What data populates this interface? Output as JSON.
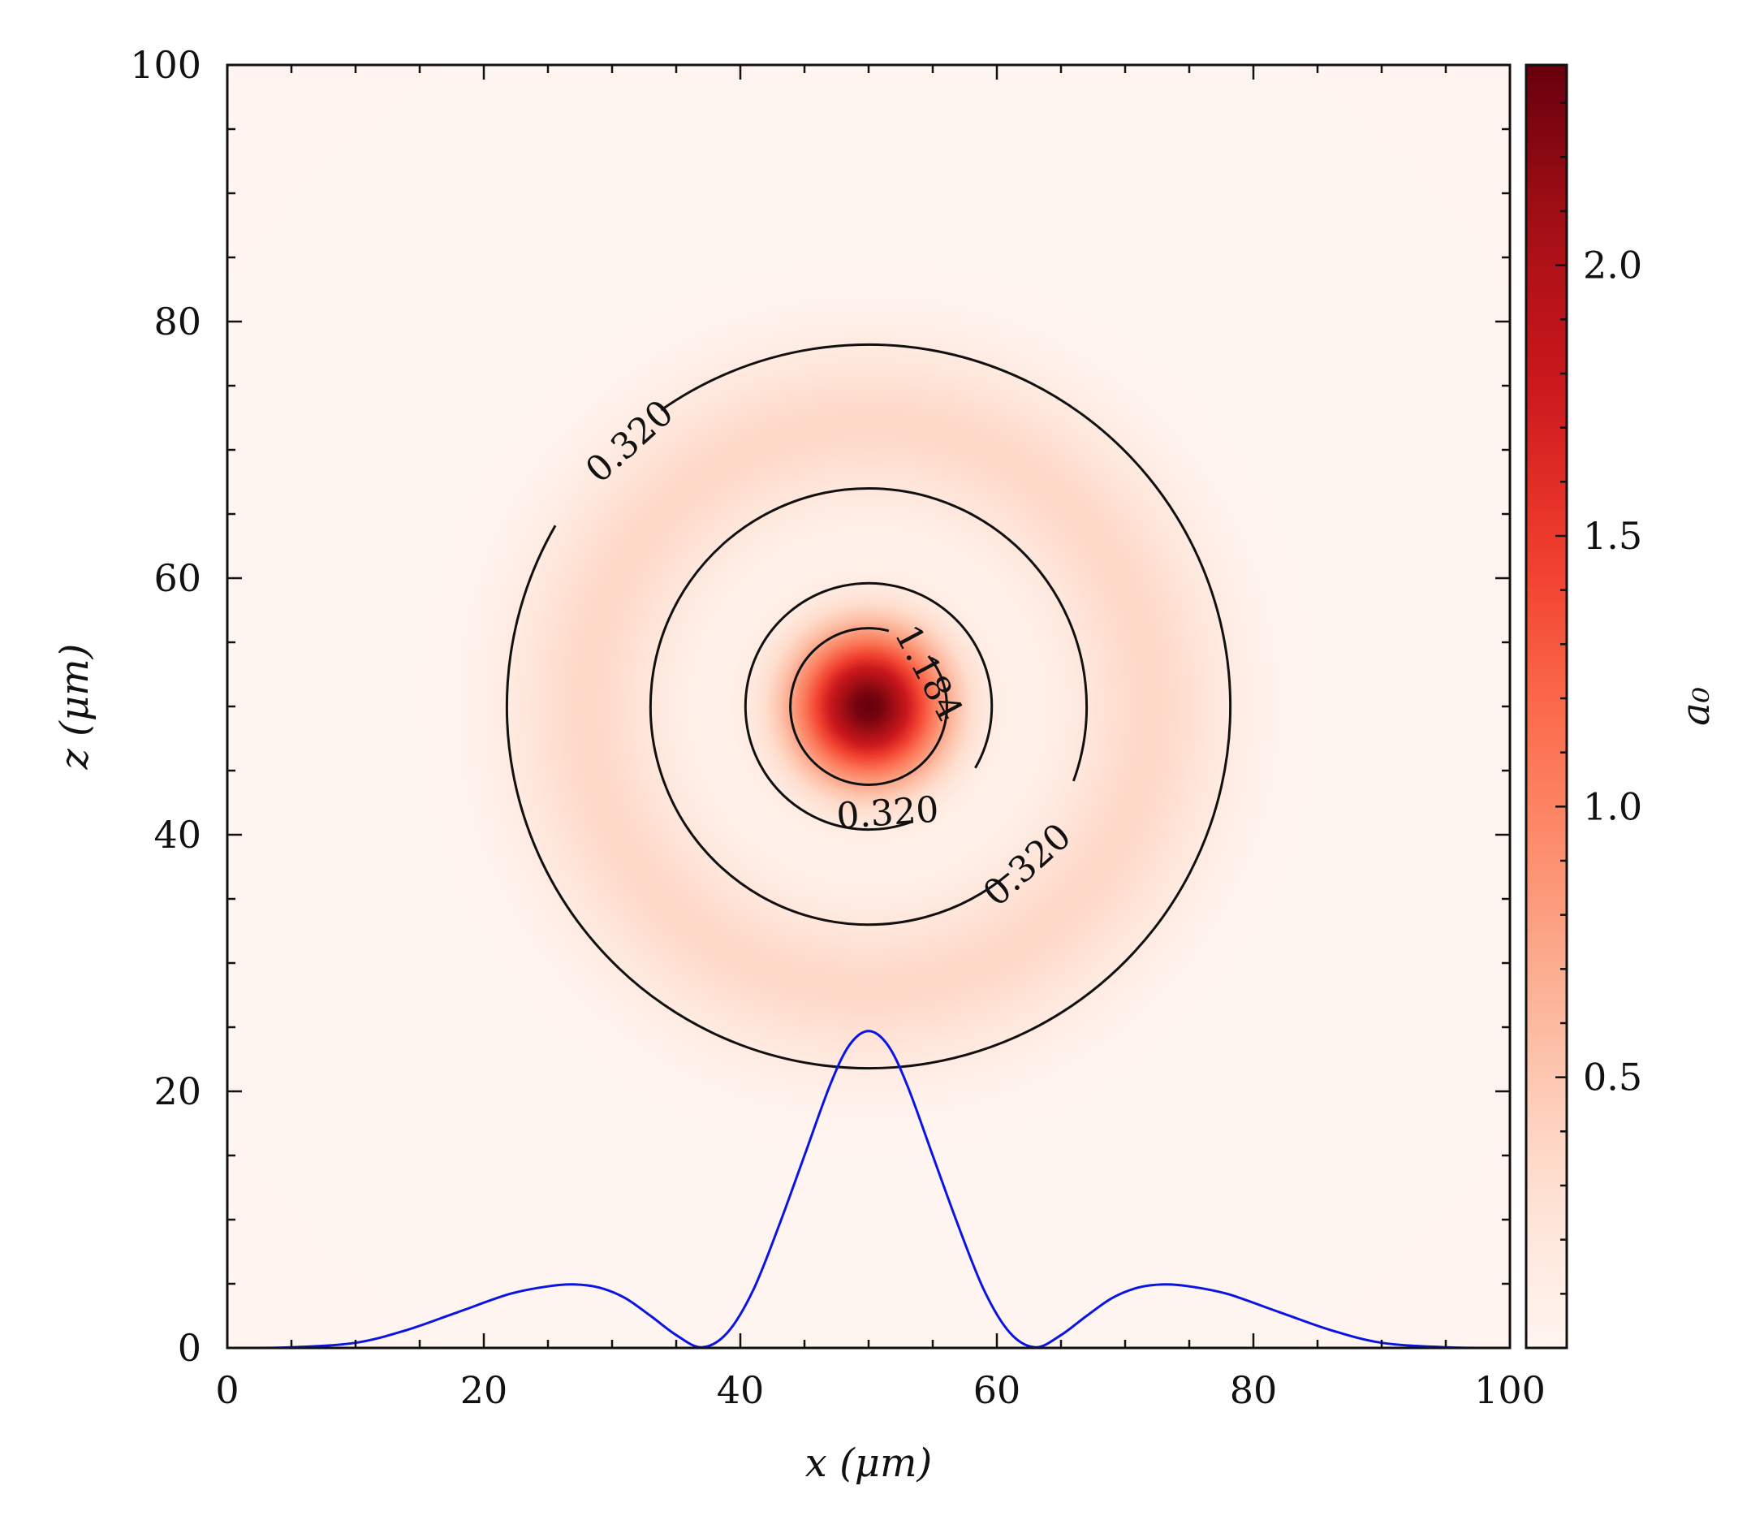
{
  "chart_data": {
    "type": "heatmap",
    "description_kind": "2D intensity map (a0) with contour lines and a 1D lineout",
    "xlabel": "x (μm)",
    "ylabel": "z (μm)",
    "xlim": [
      0,
      100
    ],
    "ylim": [
      0,
      100
    ],
    "x_ticks": [
      0,
      20,
      40,
      60,
      80,
      100
    ],
    "y_ticks": [
      0,
      20,
      40,
      60,
      80,
      100
    ],
    "x_tick_labels": [
      "0",
      "20",
      "40",
      "60",
      "80",
      "100"
    ],
    "y_tick_labels": [
      "0",
      "20",
      "40",
      "60",
      "80",
      "100"
    ],
    "colormap": "Reds",
    "colorbar": {
      "label": "a₀",
      "range": [
        0,
        2.37
      ],
      "ticks": [
        0.5,
        1.0,
        1.5,
        2.0
      ],
      "tick_labels": [
        "0.5",
        "1.0",
        "1.5",
        "2.0"
      ]
    },
    "field": {
      "center": [
        50,
        50
      ],
      "peak_value": 2.37,
      "description": "Airy-like pattern: central peak (~2.37) decaying to zero near r≈13 μm, with a ring of ~0.35 centred near r≈22 μm"
    },
    "contours": [
      {
        "level": 1.184,
        "label": "1.184",
        "radius": 6.1
      },
      {
        "level": 0.32,
        "label": "0.320",
        "radius": 9.6
      },
      {
        "level": 0.32,
        "label": "0.320",
        "radius": 17.0
      },
      {
        "level": 0.32,
        "label": "0.320",
        "radius": 28.2
      }
    ],
    "contour_labels": [
      {
        "text": "1.184",
        "x": 54.5,
        "z": 52.5,
        "angle": 62
      },
      {
        "text": "0.320",
        "x": 51.5,
        "z": 41.5,
        "angle": -4
      },
      {
        "text": "0.320",
        "x": 62.5,
        "z": 37.5,
        "angle": -42
      },
      {
        "text": "0.320",
        "x": 31.5,
        "z": 70.5,
        "angle": -42
      }
    ],
    "lineout": {
      "color": "#0a14e6",
      "x": [
        0,
        5,
        10,
        14,
        18,
        22,
        25,
        27,
        29,
        31,
        33,
        35,
        37,
        39,
        41,
        43,
        45,
        47,
        48.5,
        50,
        51.5,
        53,
        55,
        57,
        59,
        61,
        63,
        65,
        67,
        69,
        71,
        73,
        75,
        78,
        82,
        86,
        90,
        95,
        100
      ],
      "z": [
        0,
        0.05,
        0.4,
        1.4,
        2.8,
        4.2,
        4.8,
        4.95,
        4.7,
        3.9,
        2.5,
        1.0,
        0.05,
        1.2,
        4.5,
        9.5,
        15.0,
        20.5,
        23.6,
        24.7,
        23.6,
        20.5,
        15.0,
        9.5,
        4.5,
        1.2,
        0.05,
        1.0,
        2.5,
        3.9,
        4.7,
        4.95,
        4.8,
        4.2,
        2.8,
        1.4,
        0.4,
        0.05,
        0
      ]
    }
  }
}
